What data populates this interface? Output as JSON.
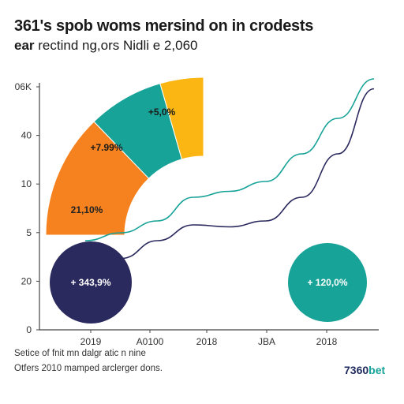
{
  "header": {
    "title": "361's spob woms mersind on in crodests",
    "subtitle_bold": "ear",
    "subtitle_rest": " rectind ng,ors Nidli e 2,060"
  },
  "footer": {
    "line1": "Setice of fnit mn dalgr atic n nine",
    "line2": "Otfers 2010 mamped arclerger dons.",
    "brand_main": "7360",
    "brand_accent": "bet"
  },
  "colors": {
    "navy": "#2b2a5e",
    "teal": "#17a398",
    "orange": "#f5821f",
    "yellow": "#fbb614",
    "axis": "#444444"
  },
  "chart_data": {
    "type": "line",
    "x_ticks": [
      "2019",
      "A0100",
      "2018",
      "JBA",
      "2018"
    ],
    "y_ticks": [
      "0",
      "20",
      "5",
      "10",
      "40",
      "06K"
    ],
    "series": [
      {
        "color": "#17a398",
        "values": [
          18,
          22,
          28,
          40,
          43,
          48,
          62,
          80,
          100
        ]
      },
      {
        "color": "#2b2a5e",
        "values": [
          5,
          9,
          18,
          26,
          25,
          28,
          40,
          62,
          95
        ]
      }
    ],
    "ring_segments": [
      {
        "label": "21,10%",
        "color": "#f5821f"
      },
      {
        "label": "+7.99%",
        "color": "#17a398"
      },
      {
        "label": "+5,0%",
        "color": "#fbb614"
      }
    ],
    "bubbles": [
      {
        "label": "+ 343,9%",
        "color": "#2b2a5e"
      },
      {
        "label": "+ 120,0%",
        "color": "#17a398"
      }
    ]
  }
}
